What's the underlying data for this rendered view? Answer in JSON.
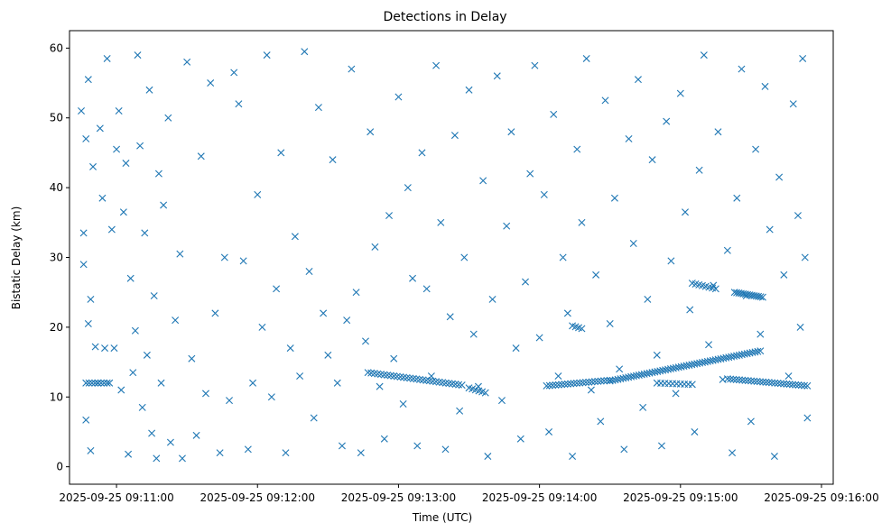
{
  "chart_data": {
    "type": "scatter",
    "title": "Detections in Delay",
    "xlabel": "Time (UTC)",
    "ylabel": "Bistatic Delay (km)",
    "xlim": [
      "2025-09-25 09:10:40",
      "2025-09-25 09:16:05"
    ],
    "ylim": [
      -2.5,
      62.5
    ],
    "x_ticks": [
      "2025-09-25 09:11:00",
      "2025-09-25 09:12:00",
      "2025-09-25 09:13:00",
      "2025-09-25 09:14:00",
      "2025-09-25 09:15:00",
      "2025-09-25 09:16:00"
    ],
    "y_ticks": [
      0,
      10,
      20,
      30,
      40,
      50,
      60
    ],
    "marker": "x",
    "color": "#1f77b4",
    "grid": false,
    "legend": "none",
    "points": {
      "x": [
        "09:10:45",
        "09:10:46",
        "09:10:46",
        "09:10:47",
        "09:10:47",
        "09:10:48",
        "09:10:48",
        "09:10:49",
        "09:10:49",
        "09:10:50",
        "09:10:51",
        "09:10:52",
        "09:10:53",
        "09:10:54",
        "09:10:55",
        "09:10:56",
        "09:10:57",
        "09:10:58",
        "09:10:59",
        "09:11:00",
        "09:11:01",
        "09:11:02",
        "09:11:03",
        "09:11:04",
        "09:11:05",
        "09:11:06",
        "09:11:07",
        "09:11:08",
        "09:11:09",
        "09:11:10",
        "09:11:11",
        "09:11:12",
        "09:11:13",
        "09:11:14",
        "09:11:15",
        "09:11:16",
        "09:11:17",
        "09:11:18",
        "09:11:19",
        "09:11:20",
        "09:11:22",
        "09:11:23",
        "09:11:25",
        "09:11:27",
        "09:11:28",
        "09:11:30",
        "09:11:32",
        "09:11:34",
        "09:11:36",
        "09:11:38",
        "09:11:40",
        "09:11:42",
        "09:11:44",
        "09:11:46",
        "09:11:48",
        "09:11:50",
        "09:11:52",
        "09:11:54",
        "09:11:56",
        "09:11:58",
        "09:12:00",
        "09:12:02",
        "09:12:04",
        "09:12:06",
        "09:12:08",
        "09:12:10",
        "09:12:12",
        "09:12:14",
        "09:12:16",
        "09:12:18",
        "09:12:20",
        "09:12:22",
        "09:12:24",
        "09:12:26",
        "09:12:28",
        "09:12:30",
        "09:12:32",
        "09:12:34",
        "09:12:36",
        "09:12:38",
        "09:12:40",
        "09:12:42",
        "09:12:44",
        "09:12:46",
        "09:12:48",
        "09:12:50",
        "09:12:52",
        "09:12:54",
        "09:12:56",
        "09:12:58",
        "09:13:00",
        "09:13:02",
        "09:13:04",
        "09:13:06",
        "09:13:08",
        "09:13:10",
        "09:13:12",
        "09:13:14",
        "09:13:16",
        "09:13:18",
        "09:13:20",
        "09:13:22",
        "09:13:24",
        "09:13:26",
        "09:13:28",
        "09:13:30",
        "09:13:32",
        "09:13:34",
        "09:13:36",
        "09:13:38",
        "09:13:40",
        "09:13:42",
        "09:13:44",
        "09:13:46",
        "09:13:48",
        "09:13:50",
        "09:13:52",
        "09:13:54",
        "09:13:56",
        "09:13:58",
        "09:14:00",
        "09:14:02",
        "09:14:04",
        "09:14:06",
        "09:14:08",
        "09:14:10",
        "09:14:12",
        "09:14:14",
        "09:14:16",
        "09:14:18",
        "09:14:20",
        "09:14:22",
        "09:14:24",
        "09:14:26",
        "09:14:28",
        "09:14:30",
        "09:14:32",
        "09:14:34",
        "09:14:36",
        "09:14:38",
        "09:14:40",
        "09:14:42",
        "09:14:44",
        "09:14:46",
        "09:14:48",
        "09:14:50",
        "09:14:52",
        "09:14:54",
        "09:14:56",
        "09:14:58",
        "09:15:00",
        "09:15:02",
        "09:15:04",
        "09:15:06",
        "09:15:08",
        "09:15:10",
        "09:15:12",
        "09:15:14",
        "09:15:16",
        "09:15:18",
        "09:15:20",
        "09:15:22",
        "09:15:24",
        "09:15:26",
        "09:15:28",
        "09:15:30",
        "09:15:32",
        "09:15:34",
        "09:15:36",
        "09:15:38",
        "09:15:40",
        "09:15:42",
        "09:15:44",
        "09:15:46",
        "09:15:48",
        "09:15:50",
        "09:15:51",
        "09:15:52",
        "09:15:53",
        "09:15:54"
      ],
      "y": [
        51.0,
        33.5,
        29.0,
        47.0,
        6.7,
        20.5,
        55.5,
        24.0,
        2.3,
        43.0,
        17.2,
        12.0,
        48.5,
        38.5,
        17.0,
        58.5,
        12.0,
        34.0,
        17.0,
        45.5,
        51.0,
        11.0,
        36.5,
        43.5,
        1.8,
        27.0,
        13.5,
        19.5,
        59.0,
        46.0,
        8.5,
        33.5,
        16.0,
        54.0,
        4.8,
        24.5,
        1.2,
        42.0,
        12.0,
        37.5,
        50.0,
        3.5,
        21.0,
        30.5,
        1.2,
        58.0,
        15.5,
        4.5,
        44.5,
        10.5,
        55.0,
        22.0,
        2.0,
        30.0,
        9.5,
        56.5,
        52.0,
        29.5,
        2.5,
        12.0,
        39.0,
        20.0,
        59.0,
        10.0,
        25.5,
        45.0,
        2.0,
        17.0,
        33.0,
        13.0,
        59.5,
        28.0,
        7.0,
        51.5,
        22.0,
        16.0,
        44.0,
        12.0,
        3.0,
        21.0,
        57.0,
        25.0,
        2.0,
        18.0,
        48.0,
        31.5,
        11.5,
        4.0,
        36.0,
        15.5,
        53.0,
        9.0,
        40.0,
        27.0,
        3.0,
        45.0,
        25.5,
        13.0,
        57.5,
        35.0,
        2.5,
        21.5,
        47.5,
        8.0,
        30.0,
        54.0,
        19.0,
        11.5,
        41.0,
        1.5,
        24.0,
        56.0,
        9.5,
        34.5,
        48.0,
        17.0,
        4.0,
        26.5,
        42.0,
        57.5,
        18.5,
        39.0,
        5.0,
        50.5,
        13.0,
        30.0,
        22.0,
        1.5,
        45.5,
        35.0,
        58.5,
        11.0,
        27.5,
        6.5,
        52.5,
        20.5,
        38.5,
        14.0,
        2.5,
        47.0,
        32.0,
        55.5,
        8.5,
        24.0,
        44.0,
        16.0,
        3.0,
        49.5,
        29.5,
        10.5,
        53.5,
        36.5,
        22.5,
        5.0,
        42.5,
        59.0,
        17.5,
        26.0,
        48.0,
        12.5,
        31.0,
        2.0,
        38.5,
        57.0,
        24.5,
        6.5,
        45.5,
        19.0,
        54.5,
        34.0,
        1.5,
        41.5,
        27.5,
        13.0,
        52.0,
        36.0,
        20.0,
        58.5,
        30.0,
        7.0
      ]
    },
    "tracks": [
      {
        "x_start": "09:10:47",
        "x_end": "09:10:56",
        "y_start": 12.0,
        "y_end": 12.0
      },
      {
        "x_start": "09:12:47",
        "x_end": "09:13:27",
        "y_start": 13.5,
        "y_end": 11.7
      },
      {
        "x_start": "09:13:30",
        "x_end": "09:13:37",
        "y_start": 11.3,
        "y_end": 10.6
      },
      {
        "x_start": "09:14:03",
        "x_end": "09:14:30",
        "y_start": 11.6,
        "y_end": 12.4
      },
      {
        "x_start": "09:14:30",
        "x_end": "09:15:34",
        "y_start": 12.3,
        "y_end": 16.6
      },
      {
        "x_start": "09:15:20",
        "x_end": "09:15:54",
        "y_start": 12.6,
        "y_end": 11.6
      },
      {
        "x_start": "09:14:50",
        "x_end": "09:15:05",
        "y_start": 12.0,
        "y_end": 11.8
      },
      {
        "x_start": "09:15:23",
        "x_end": "09:15:35",
        "y_start": 25.0,
        "y_end": 24.3
      },
      {
        "x_start": "09:15:05",
        "x_end": "09:15:15",
        "y_start": 26.3,
        "y_end": 25.5
      },
      {
        "x_start": "09:14:14",
        "x_end": "09:14:18",
        "y_start": 20.2,
        "y_end": 19.8
      }
    ],
    "track_point_count": [
      8,
      30,
      6,
      22,
      58,
      28,
      10,
      14,
      8,
      4
    ]
  }
}
